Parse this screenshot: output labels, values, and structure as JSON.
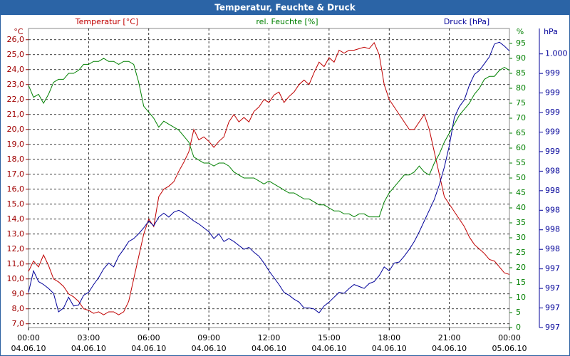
{
  "chart_data": {
    "type": "line",
    "title": "Temperatur, Feuchte & Druck",
    "y_unit": "°C",
    "y2_unit": "%",
    "y3_unit": "hPa",
    "grid": true,
    "xlim": [
      0,
      24
    ],
    "xticks": [
      {
        "value": 0,
        "label": "00:00",
        "date": "04.06.10"
      },
      {
        "value": 3,
        "label": "03:00",
        "date": "04.06.10"
      },
      {
        "value": 6,
        "label": "06:00",
        "date": "04.06.10"
      },
      {
        "value": 9,
        "label": "09:00",
        "date": "04.06.10"
      },
      {
        "value": 12,
        "label": "12:00",
        "date": "04.06.10"
      },
      {
        "value": 15,
        "label": "15:00",
        "date": "04.06.10"
      },
      {
        "value": 18,
        "label": "18:00",
        "date": "04.06.10"
      },
      {
        "value": 21,
        "label": "21:00",
        "date": "04.06.10"
      },
      {
        "value": 24,
        "label": "00:00",
        "date": "05.06.10"
      }
    ],
    "ylim": [
      6.75,
      26.75
    ],
    "yticks": [
      {
        "value": 7,
        "label": "7,0"
      },
      {
        "value": 8,
        "label": "8,0"
      },
      {
        "value": 9,
        "label": "9,0"
      },
      {
        "value": 10,
        "label": "10,0"
      },
      {
        "value": 11,
        "label": "11,0"
      },
      {
        "value": 12,
        "label": "12,0"
      },
      {
        "value": 13,
        "label": "13,0"
      },
      {
        "value": 14,
        "label": "14,0"
      },
      {
        "value": 15,
        "label": "15,0"
      },
      {
        "value": 16,
        "label": "16,0"
      },
      {
        "value": 17,
        "label": "17,0"
      },
      {
        "value": 18,
        "label": "18,0"
      },
      {
        "value": 19,
        "label": "19,0"
      },
      {
        "value": 20,
        "label": "20,0"
      },
      {
        "value": 21,
        "label": "21,0"
      },
      {
        "value": 22,
        "label": "22,0"
      },
      {
        "value": 23,
        "label": "23,0"
      },
      {
        "value": 24,
        "label": "24,0"
      },
      {
        "value": 25,
        "label": "25,0"
      },
      {
        "value": 26,
        "label": "26,0"
      }
    ],
    "y2lim": [
      0,
      100
    ],
    "y2ticks": [
      0,
      5,
      10,
      15,
      20,
      25,
      30,
      35,
      40,
      45,
      50,
      55,
      60,
      65,
      70,
      75,
      80,
      85,
      90,
      95
    ],
    "y3lim": [
      997.2,
      1000.26
    ],
    "y3ticks": [
      {
        "value": 997.2,
        "label": "997"
      },
      {
        "value": 997.4,
        "label": "997"
      },
      {
        "value": 997.6,
        "label": "997"
      },
      {
        "value": 997.8,
        "label": "997"
      },
      {
        "value": 998.0,
        "label": "998"
      },
      {
        "value": 998.2,
        "label": "998"
      },
      {
        "value": 998.4,
        "label": "998"
      },
      {
        "value": 998.6,
        "label": "998"
      },
      {
        "value": 998.8,
        "label": "998"
      },
      {
        "value": 999.0,
        "label": "999"
      },
      {
        "value": 999.2,
        "label": "999"
      },
      {
        "value": 999.4,
        "label": "999"
      },
      {
        "value": 999.6,
        "label": "999"
      },
      {
        "value": 999.8,
        "label": "999"
      },
      {
        "value": 1000.0,
        "label": "1.000"
      }
    ],
    "x": [
      0,
      0.25,
      0.5,
      0.75,
      1,
      1.25,
      1.5,
      1.75,
      2,
      2.25,
      2.5,
      2.75,
      3,
      3.25,
      3.5,
      3.75,
      4,
      4.25,
      4.5,
      4.75,
      5,
      5.25,
      5.5,
      5.75,
      6,
      6.25,
      6.5,
      6.75,
      7,
      7.25,
      7.5,
      7.75,
      8,
      8.25,
      8.5,
      8.75,
      9,
      9.25,
      9.5,
      9.75,
      10,
      10.25,
      10.5,
      10.75,
      11,
      11.25,
      11.5,
      11.75,
      12,
      12.25,
      12.5,
      12.75,
      13,
      13.25,
      13.5,
      13.75,
      14,
      14.25,
      14.5,
      14.75,
      15,
      15.25,
      15.5,
      15.75,
      16,
      16.25,
      16.5,
      16.75,
      17,
      17.25,
      17.5,
      17.75,
      18,
      18.25,
      18.5,
      18.75,
      19,
      19.25,
      19.5,
      19.75,
      20,
      20.25,
      20.5,
      20.75,
      21,
      21.25,
      21.5,
      21.75,
      22,
      22.25,
      22.5,
      22.75,
      23,
      23.25,
      23.5,
      23.75,
      24
    ],
    "series": [
      {
        "name": "Temperatur [°C]",
        "color": "#c00000",
        "axis": "y",
        "values": [
          10.5,
          11.2,
          10.8,
          11.6,
          10.9,
          10.0,
          9.8,
          9.5,
          9.0,
          8.8,
          8.5,
          8.0,
          7.9,
          7.7,
          7.8,
          7.6,
          7.8,
          7.8,
          7.6,
          7.8,
          8.5,
          10.0,
          11.5,
          13.0,
          14.0,
          13.5,
          15.5,
          16.0,
          16.2,
          16.5,
          17.2,
          17.8,
          18.5,
          20.0,
          19.3,
          19.5,
          19.2,
          18.8,
          19.2,
          19.5,
          20.5,
          21.0,
          20.5,
          20.8,
          20.5,
          21.2,
          21.5,
          22.0,
          21.8,
          22.3,
          22.5,
          21.8,
          22.2,
          22.5,
          23.0,
          23.3,
          23.0,
          23.8,
          24.5,
          24.2,
          24.8,
          24.5,
          25.3,
          25.1,
          25.3,
          25.3,
          25.4,
          25.5,
          25.4,
          25.8,
          25.0,
          23.0,
          22.0,
          21.5,
          21.0,
          20.5,
          20.0,
          20.0,
          20.5,
          21.0,
          20.0,
          18.5,
          17.0,
          15.5,
          15.0,
          14.5,
          14.0,
          13.5,
          12.8,
          12.3,
          12.0,
          11.7,
          11.3,
          11.2,
          10.8,
          10.4,
          10.3
        ]
      },
      {
        "name": "rel. Feuchte [%]",
        "color": "#008000",
        "axis": "y2",
        "values": [
          81,
          77,
          78,
          75,
          78,
          82,
          83,
          83,
          85,
          85,
          86,
          88,
          88,
          89,
          89,
          90,
          89,
          89,
          88,
          89,
          89,
          88,
          82,
          74,
          72,
          70,
          67,
          69,
          68,
          67,
          66,
          64,
          62,
          57,
          56,
          55,
          55,
          54,
          55,
          55,
          54,
          52,
          51,
          50,
          50,
          50,
          49,
          48,
          49,
          48,
          47,
          46,
          45,
          45,
          44,
          43,
          43,
          42,
          41,
          41,
          40,
          39,
          39,
          38,
          38,
          37,
          38,
          38,
          37,
          37,
          37,
          42,
          45,
          47,
          49,
          51,
          51,
          52,
          54,
          52,
          51,
          55,
          58,
          62,
          65,
          68,
          71,
          73,
          75,
          78,
          80,
          83,
          84,
          84,
          86,
          87,
          86
        ]
      },
      {
        "name": "Druck [hPa]",
        "color": "#000099",
        "axis": "y3",
        "values": [
          997.56,
          997.78,
          997.67,
          997.64,
          997.6,
          997.55,
          997.36,
          997.4,
          997.51,
          997.42,
          997.43,
          997.53,
          997.56,
          997.64,
          997.71,
          997.8,
          997.86,
          997.82,
          997.93,
          998.0,
          998.08,
          998.11,
          998.16,
          998.22,
          998.29,
          998.24,
          998.33,
          998.37,
          998.33,
          998.38,
          998.4,
          998.37,
          998.33,
          998.29,
          998.26,
          998.22,
          998.18,
          998.11,
          998.16,
          998.08,
          998.11,
          998.08,
          998.04,
          998.0,
          998.02,
          997.97,
          997.93,
          997.86,
          997.78,
          997.71,
          997.64,
          997.56,
          997.53,
          997.49,
          997.46,
          997.4,
          997.4,
          997.39,
          997.35,
          997.42,
          997.46,
          997.51,
          997.56,
          997.55,
          997.6,
          997.64,
          997.62,
          997.6,
          997.65,
          997.67,
          997.73,
          997.82,
          997.78,
          997.86,
          997.87,
          997.93,
          998.0,
          998.08,
          998.18,
          998.29,
          998.4,
          998.51,
          998.66,
          998.84,
          999.06,
          999.35,
          999.46,
          999.53,
          999.68,
          999.79,
          999.83,
          999.9,
          999.97,
          1000.1,
          1000.12,
          1000.08,
          1000.03
        ]
      }
    ]
  }
}
